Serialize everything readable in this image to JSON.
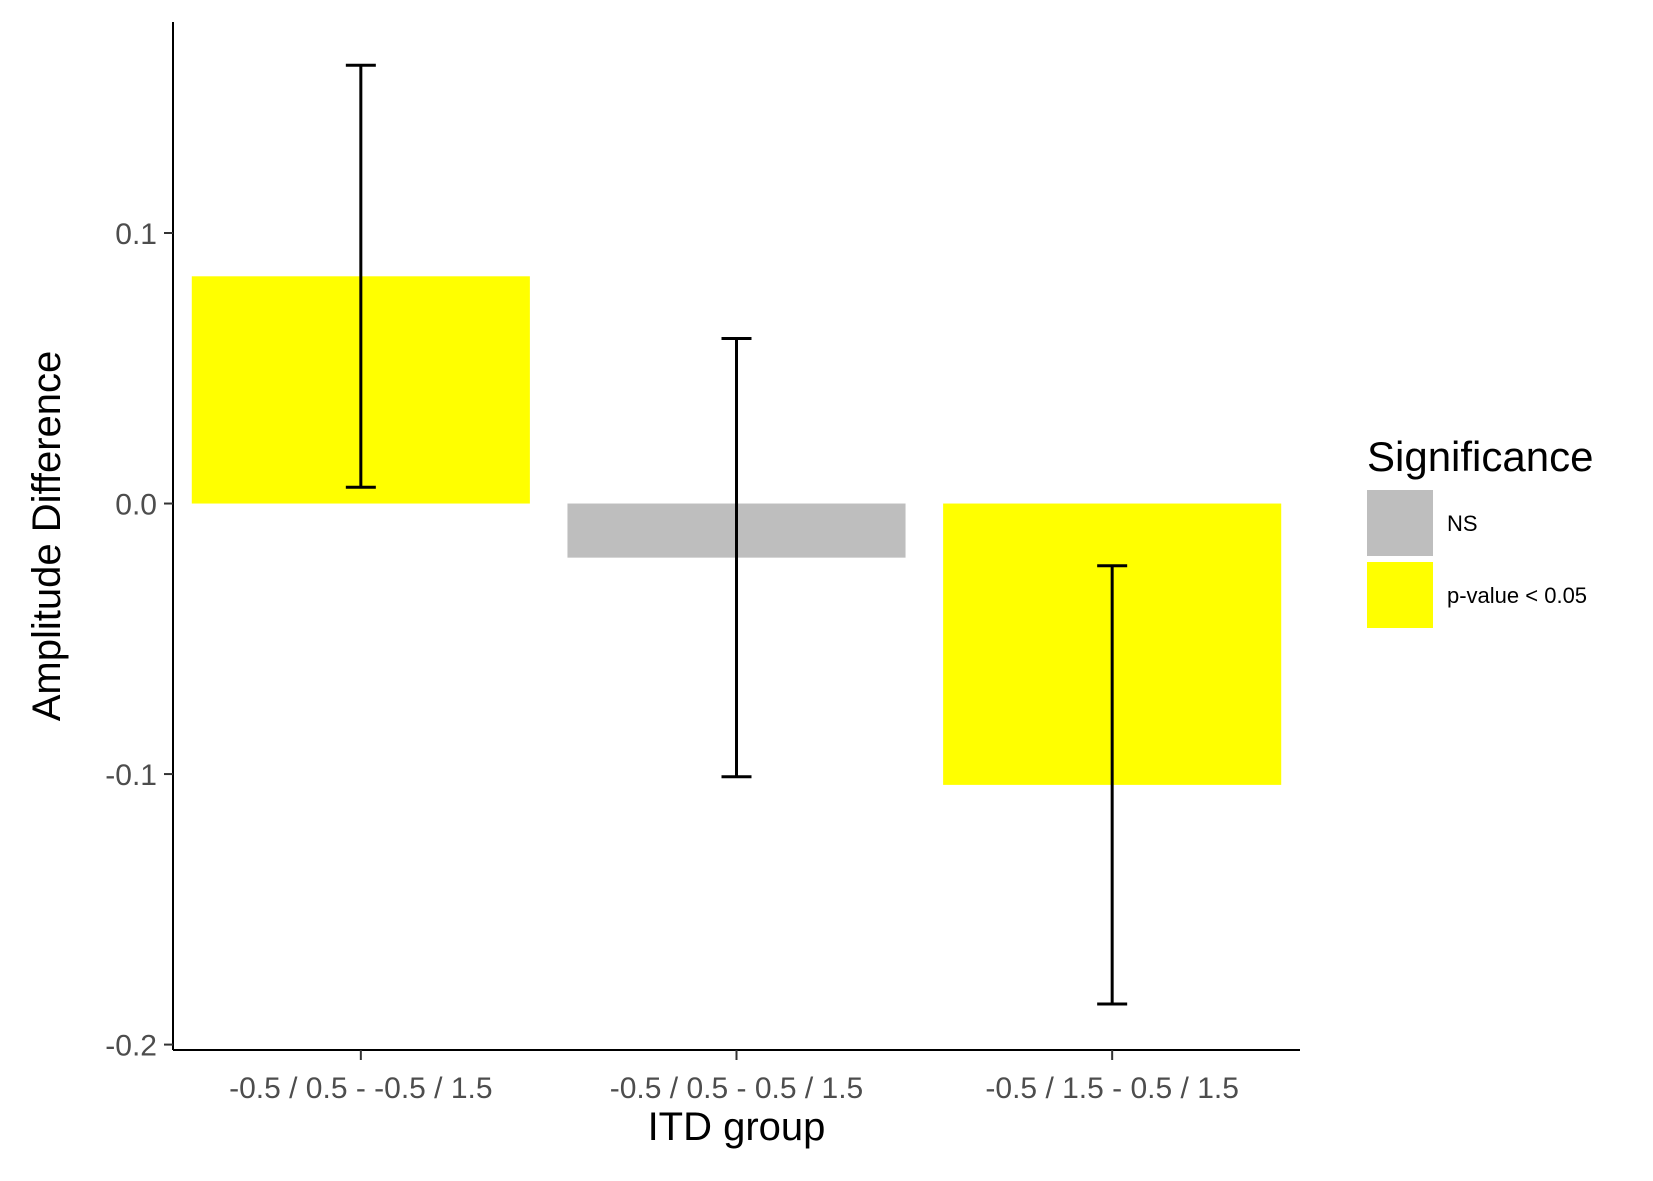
{
  "chart_data": {
    "type": "bar",
    "title": "",
    "xlabel": "ITD group",
    "ylabel": "Amplitude Difference",
    "categories": [
      "-0.5 / 0.5 - -0.5 / 1.5",
      "-0.5 / 0.5 - 0.5 / 1.5",
      "-0.5 / 1.5 - 0.5 / 1.5"
    ],
    "values": [
      0.084,
      -0.02,
      -0.104
    ],
    "error_low": [
      0.006,
      -0.101,
      -0.185
    ],
    "error_high": [
      0.162,
      0.061,
      -0.023
    ],
    "significance": [
      "p-value < 0.05",
      "NS",
      "p-value < 0.05"
    ],
    "ylim": [
      -0.202,
      0.178
    ],
    "yticks": [
      {
        "value": 0.1,
        "label": "0.1"
      },
      {
        "value": 0.0,
        "label": "0.0"
      },
      {
        "value": -0.1,
        "label": "-0.1"
      },
      {
        "value": -0.2,
        "label": "-0.2"
      }
    ],
    "grid": false,
    "legend": {
      "title": "Significance",
      "placement": "right",
      "entries": [
        {
          "label": "NS",
          "color": "#bebebe"
        },
        {
          "label": "p-value < 0.05",
          "color": "#ffff00"
        }
      ]
    }
  }
}
